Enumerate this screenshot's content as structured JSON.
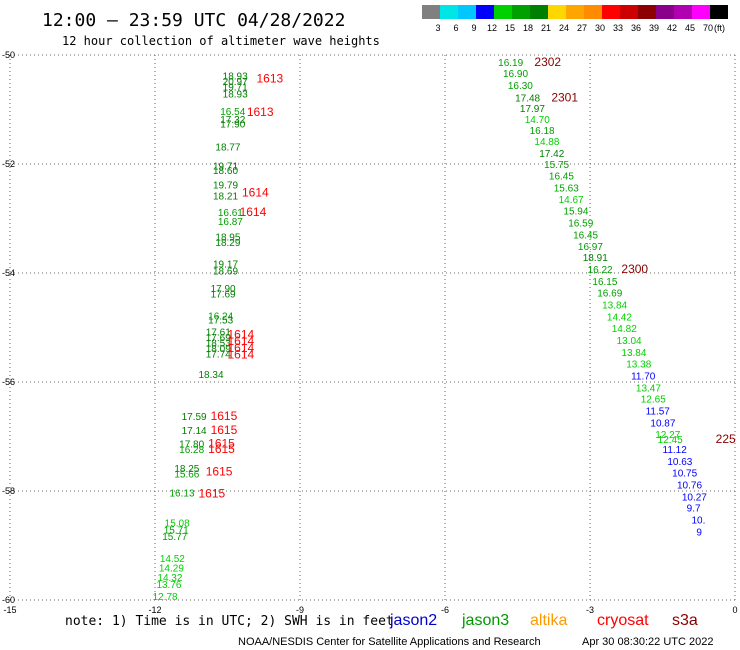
{
  "chart_data": {
    "type": "scatter",
    "title": "12:00 – 23:59 UTC 04/28/2022",
    "subtitle": "12 hour collection of altimeter wave heights",
    "xlim": [
      -15,
      0
    ],
    "ylim": [
      -60,
      -50
    ],
    "x_ticks": [
      "-15",
      "-12",
      "-9",
      "-6",
      "-3",
      "0"
    ],
    "y_ticks": [
      "-50",
      "-52",
      "-54",
      "-56",
      "-58",
      "-60"
    ],
    "grid": true,
    "scale": {
      "labels": [
        "3",
        "6",
        "9",
        "12",
        "15",
        "18",
        "21",
        "24",
        "27",
        "30",
        "33",
        "36",
        "39",
        "42",
        "45",
        "70",
        "(ft)"
      ],
      "colors": [
        "#808080",
        "#00e5e5",
        "#00c8ff",
        "#0000ff",
        "#00d000",
        "#00a000",
        "#008000",
        "#ffd700",
        "#ffa500",
        "#ff8c00",
        "#ff0000",
        "#cc0000",
        "#8b0000",
        "#8b008b",
        "#b000b0",
        "#ff00ff",
        "#000000"
      ]
    },
    "legend": [
      {
        "name": "jason2",
        "color": "#0000cc"
      },
      {
        "name": "jason3",
        "color": "#009900"
      },
      {
        "name": "altika",
        "color": "#ff9900"
      },
      {
        "name": "cryosat",
        "color": "#ff0000"
      },
      {
        "name": "s3a",
        "color": "#880000"
      }
    ],
    "note": "note: 1) Time is in UTC; 2) SWH is in feet",
    "credit": "NOAA/NESDIS Center for Satellite Applications and Research",
    "timestamp": "Apr 30 08:30:22 UTC 2022",
    "points": [
      {
        "x": -10.6,
        "y": -50.45,
        "label": "18.93",
        "color": "#008000"
      },
      {
        "x": -10.6,
        "y": -50.55,
        "label": "20.97",
        "color": "#008000"
      },
      {
        "x": -10.6,
        "y": -50.65,
        "label": "19.71",
        "color": "#008000"
      },
      {
        "x": -10.6,
        "y": -50.78,
        "label": "18.93",
        "color": "#008000"
      },
      {
        "x": -10.65,
        "y": -51.1,
        "label": "16.54",
        "color": "#00a000"
      },
      {
        "x": -10.65,
        "y": -51.25,
        "label": "17.32",
        "color": "#008000"
      },
      {
        "x": -10.65,
        "y": -51.33,
        "label": "17.90",
        "color": "#008000"
      },
      {
        "x": -10.75,
        "y": -51.75,
        "label": "18.77",
        "color": "#008000"
      },
      {
        "x": -10.8,
        "y": -52.1,
        "label": "19.71",
        "color": "#008000"
      },
      {
        "x": -10.8,
        "y": -52.18,
        "label": "18.60",
        "color": "#008000"
      },
      {
        "x": -10.8,
        "y": -52.45,
        "label": "19.79",
        "color": "#008000"
      },
      {
        "x": -10.8,
        "y": -52.65,
        "label": "18.21",
        "color": "#008000"
      },
      {
        "x": -10.7,
        "y": -52.95,
        "label": "16.61",
        "color": "#00a000"
      },
      {
        "x": -10.7,
        "y": -53.12,
        "label": "16.87",
        "color": "#00a000"
      },
      {
        "x": -10.75,
        "y": -53.4,
        "label": "18.95",
        "color": "#008000"
      },
      {
        "x": -10.75,
        "y": -53.5,
        "label": "18.29",
        "color": "#008000"
      },
      {
        "x": -10.8,
        "y": -53.9,
        "label": "19.17",
        "color": "#008000"
      },
      {
        "x": -10.8,
        "y": -54.03,
        "label": "18.69",
        "color": "#008000"
      },
      {
        "x": -10.85,
        "y": -54.35,
        "label": "17.90",
        "color": "#008000"
      },
      {
        "x": -10.85,
        "y": -54.45,
        "label": "17.69",
        "color": "#008000"
      },
      {
        "x": -10.9,
        "y": -54.85,
        "label": "16.24",
        "color": "#00a000"
      },
      {
        "x": -10.9,
        "y": -54.93,
        "label": "17.53",
        "color": "#008000"
      },
      {
        "x": -10.95,
        "y": -55.15,
        "label": "17.61",
        "color": "#008000"
      },
      {
        "x": -10.95,
        "y": -55.25,
        "label": "17.69",
        "color": "#008000"
      },
      {
        "x": -10.95,
        "y": -55.35,
        "label": "18.53",
        "color": "#008000"
      },
      {
        "x": -10.95,
        "y": -55.45,
        "label": "18.09",
        "color": "#008000"
      },
      {
        "x": -10.95,
        "y": -55.55,
        "label": "17.74",
        "color": "#008000"
      },
      {
        "x": -11.1,
        "y": -55.93,
        "label": "18.34",
        "color": "#008000"
      },
      {
        "x": -11.45,
        "y": -56.7,
        "label": "17.59",
        "color": "#008000"
      },
      {
        "x": -11.45,
        "y": -56.95,
        "label": "17.14",
        "color": "#008000"
      },
      {
        "x": -11.5,
        "y": -57.2,
        "label": "17.80",
        "color": "#008000"
      },
      {
        "x": -11.5,
        "y": -57.3,
        "label": "16.28",
        "color": "#00a000"
      },
      {
        "x": -11.6,
        "y": -57.65,
        "label": "18.25",
        "color": "#008000"
      },
      {
        "x": -11.6,
        "y": -57.75,
        "label": "15.66",
        "color": "#00a000"
      },
      {
        "x": -11.7,
        "y": -58.1,
        "label": "16.13",
        "color": "#00a000"
      },
      {
        "x": -11.8,
        "y": -58.65,
        "label": "15.08",
        "color": "#00d000"
      },
      {
        "x": -11.82,
        "y": -58.78,
        "label": "15.71",
        "color": "#00a000"
      },
      {
        "x": -11.85,
        "y": -58.9,
        "label": "15.77",
        "color": "#00a000"
      },
      {
        "x": -11.9,
        "y": -59.3,
        "label": "14.52",
        "color": "#00d000"
      },
      {
        "x": -11.92,
        "y": -59.48,
        "label": "14.29",
        "color": "#00d000"
      },
      {
        "x": -11.95,
        "y": -59.65,
        "label": "14.32",
        "color": "#00d000"
      },
      {
        "x": -11.97,
        "y": -59.78,
        "label": "13.76",
        "color": "#00d000"
      },
      {
        "x": -12.05,
        "y": -60.0,
        "label": "12.78",
        "color": "#00d000"
      },
      {
        "x": -4.9,
        "y": -50.2,
        "label": "16.19",
        "color": "#00a000"
      },
      {
        "x": -4.8,
        "y": -50.4,
        "label": "16.90",
        "color": "#00a000"
      },
      {
        "x": -4.7,
        "y": -50.62,
        "label": "16.30",
        "color": "#00a000"
      },
      {
        "x": -4.55,
        "y": -50.85,
        "label": "17.48",
        "color": "#008000"
      },
      {
        "x": -4.45,
        "y": -51.05,
        "label": "17.97",
        "color": "#008000"
      },
      {
        "x": -4.35,
        "y": -51.25,
        "label": "14.70",
        "color": "#00d000"
      },
      {
        "x": -4.25,
        "y": -51.45,
        "label": "16.18",
        "color": "#00a000"
      },
      {
        "x": -4.15,
        "y": -51.65,
        "label": "14.88",
        "color": "#00d000"
      },
      {
        "x": -4.05,
        "y": -51.87,
        "label": "17.42",
        "color": "#008000"
      },
      {
        "x": -3.95,
        "y": -52.07,
        "label": "15.75",
        "color": "#00a000"
      },
      {
        "x": -3.85,
        "y": -52.28,
        "label": "16.45",
        "color": "#00a000"
      },
      {
        "x": -3.75,
        "y": -52.5,
        "label": "15.63",
        "color": "#00a000"
      },
      {
        "x": -3.65,
        "y": -52.72,
        "label": "14.67",
        "color": "#00d000"
      },
      {
        "x": -3.55,
        "y": -52.93,
        "label": "15.94",
        "color": "#00a000"
      },
      {
        "x": -3.45,
        "y": -53.15,
        "label": "16.59",
        "color": "#00a000"
      },
      {
        "x": -3.35,
        "y": -53.37,
        "label": "16.45",
        "color": "#00a000"
      },
      {
        "x": -3.25,
        "y": -53.58,
        "label": "16.97",
        "color": "#00a000"
      },
      {
        "x": -3.15,
        "y": -53.78,
        "label": "18.91",
        "color": "#008000"
      },
      {
        "x": -3.05,
        "y": -54.0,
        "label": "16.22",
        "color": "#00a000"
      },
      {
        "x": -2.95,
        "y": -54.22,
        "label": "16.15",
        "color": "#00a000"
      },
      {
        "x": -2.85,
        "y": -54.43,
        "label": "16.69",
        "color": "#00a000"
      },
      {
        "x": -2.75,
        "y": -54.65,
        "label": "13.84",
        "color": "#00d000"
      },
      {
        "x": -2.65,
        "y": -54.87,
        "label": "14.42",
        "color": "#00d000"
      },
      {
        "x": -2.55,
        "y": -55.08,
        "label": "14.82",
        "color": "#00d000"
      },
      {
        "x": -2.45,
        "y": -55.3,
        "label": "13.04",
        "color": "#00d000"
      },
      {
        "x": -2.35,
        "y": -55.52,
        "label": "13.84",
        "color": "#00d000"
      },
      {
        "x": -2.25,
        "y": -55.73,
        "label": "13.38",
        "color": "#00d000"
      },
      {
        "x": -2.15,
        "y": -55.95,
        "label": "11.70",
        "color": "#0000ff"
      },
      {
        "x": -2.05,
        "y": -56.17,
        "label": "13.47",
        "color": "#00d000"
      },
      {
        "x": -1.95,
        "y": -56.38,
        "label": "12.65",
        "color": "#00d000"
      },
      {
        "x": -1.85,
        "y": -56.6,
        "label": "11.57",
        "color": "#0000ff"
      },
      {
        "x": -1.75,
        "y": -56.82,
        "label": "10.87",
        "color": "#0000ff"
      },
      {
        "x": -1.65,
        "y": -57.03,
        "label": "12.27",
        "color": "#00d000"
      },
      {
        "x": -1.6,
        "y": -57.12,
        "label": "12.45",
        "color": "#00d000"
      },
      {
        "x": -1.5,
        "y": -57.3,
        "label": "11.12",
        "color": "#0000ff"
      },
      {
        "x": -1.4,
        "y": -57.52,
        "label": "10.63",
        "color": "#0000ff"
      },
      {
        "x": -1.3,
        "y": -57.73,
        "label": "10.75",
        "color": "#0000ff"
      },
      {
        "x": -1.2,
        "y": -57.95,
        "label": "10.76",
        "color": "#0000ff"
      },
      {
        "x": -1.1,
        "y": -58.17,
        "label": "10.27",
        "color": "#0000ff"
      },
      {
        "x": -1.0,
        "y": -58.38,
        "label": "9.7",
        "color": "#0000ff"
      },
      {
        "x": -0.9,
        "y": -58.6,
        "label": "10.",
        "color": "#0000ff"
      },
      {
        "x": -0.8,
        "y": -58.82,
        "label": "9",
        "color": "#0000ff"
      }
    ],
    "passes": [
      {
        "x": -9.9,
        "y": -50.5,
        "label": "1613",
        "color": "#ff0000"
      },
      {
        "x": -10.1,
        "y": -51.12,
        "label": "1613",
        "color": "#ff0000"
      },
      {
        "x": -10.2,
        "y": -52.6,
        "label": "1614",
        "color": "#ff0000"
      },
      {
        "x": -10.25,
        "y": -52.95,
        "label": "1614",
        "color": "#ff0000"
      },
      {
        "x": -10.5,
        "y": -55.2,
        "label": "1614",
        "color": "#ff0000"
      },
      {
        "x": -10.5,
        "y": -55.32,
        "label": "1614",
        "color": "#ff0000"
      },
      {
        "x": -10.5,
        "y": -55.45,
        "label": "1614",
        "color": "#ff0000"
      },
      {
        "x": -10.5,
        "y": -55.57,
        "label": "1614",
        "color": "#ff0000"
      },
      {
        "x": -10.85,
        "y": -56.7,
        "label": "1615",
        "color": "#ff0000"
      },
      {
        "x": -10.85,
        "y": -56.95,
        "label": "1615",
        "color": "#ff0000"
      },
      {
        "x": -10.9,
        "y": -57.2,
        "label": "1615",
        "color": "#ff0000"
      },
      {
        "x": -10.9,
        "y": -57.3,
        "label": "1615",
        "color": "#ff0000"
      },
      {
        "x": -10.95,
        "y": -57.72,
        "label": "1615",
        "color": "#ff0000"
      },
      {
        "x": -11.1,
        "y": -58.12,
        "label": "1615",
        "color": "#ff0000"
      },
      {
        "x": -4.15,
        "y": -50.2,
        "label": "2302",
        "color": "#880000"
      },
      {
        "x": -3.8,
        "y": -50.85,
        "label": "2301",
        "color": "#880000"
      },
      {
        "x": -2.35,
        "y": -54.0,
        "label": "2300",
        "color": "#880000"
      },
      {
        "x": -0.4,
        "y": -57.12,
        "label": "225",
        "color": "#880000"
      }
    ]
  }
}
